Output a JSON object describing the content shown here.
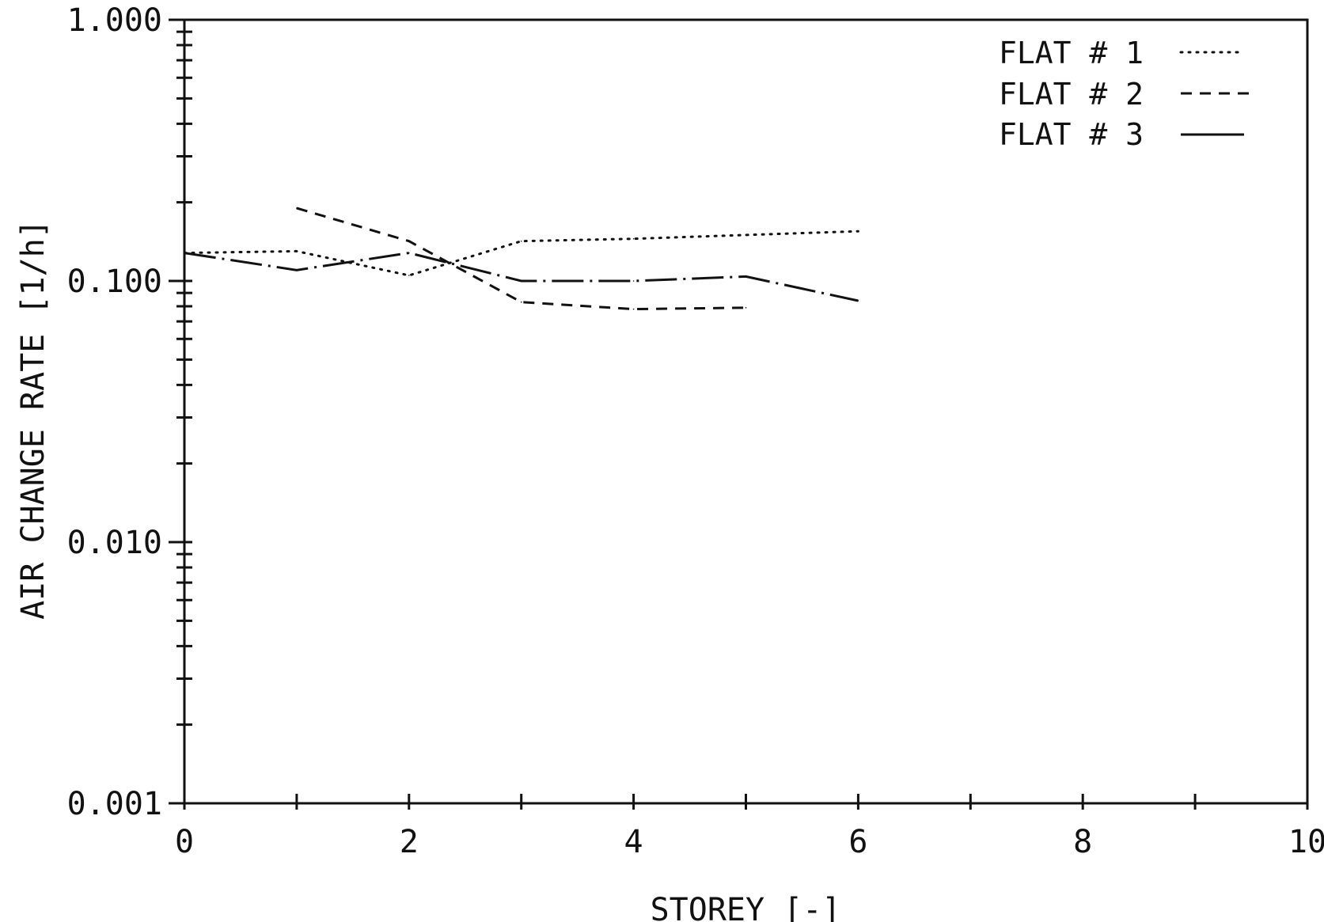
{
  "chart_data": {
    "type": "line",
    "title": "",
    "xlabel": "STOREY [-]",
    "ylabel": "AIR CHANGE RATE [1/h]",
    "xlim": [
      0,
      10
    ],
    "ylim": [
      0.001,
      1.0
    ],
    "yscale": "log",
    "grid": false,
    "legend_position": "top-right",
    "xticks": [
      0,
      1,
      2,
      3,
      4,
      5,
      6,
      7,
      8,
      9,
      10
    ],
    "xtick_labels": [
      {
        "value": 0,
        "label": "0"
      },
      {
        "value": 2,
        "label": "2"
      },
      {
        "value": 4,
        "label": "4"
      },
      {
        "value": 6,
        "label": "6"
      },
      {
        "value": 8,
        "label": "8"
      },
      {
        "value": 10,
        "label": "10"
      }
    ],
    "ytick_labels": [
      {
        "value": 1.0,
        "label": "1.000"
      },
      {
        "value": 0.1,
        "label": "0.100"
      },
      {
        "value": 0.01,
        "label": "0.010"
      },
      {
        "value": 0.001,
        "label": "0.001"
      }
    ],
    "series": [
      {
        "name": "FLAT # 1",
        "style": "dotted",
        "x": [
          0,
          1,
          2,
          3,
          4,
          5,
          6
        ],
        "y": [
          0.128,
          0.13,
          0.105,
          0.142,
          0.145,
          0.15,
          0.155
        ]
      },
      {
        "name": "FLAT # 2",
        "style": "dashed",
        "x": [
          1,
          2,
          3,
          4,
          5
        ],
        "y": [
          0.19,
          0.142,
          0.083,
          0.078,
          0.079
        ]
      },
      {
        "name": "FLAT # 3",
        "style": "dashdot",
        "x": [
          0,
          1,
          2,
          3,
          4,
          5,
          6
        ],
        "y": [
          0.128,
          0.11,
          0.128,
          0.1,
          0.1,
          0.104,
          0.084
        ]
      }
    ]
  }
}
